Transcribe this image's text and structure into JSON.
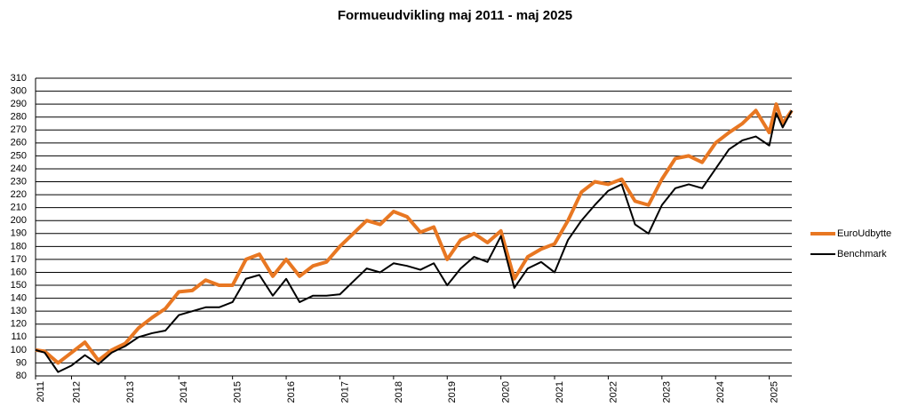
{
  "chart_data": {
    "type": "line",
    "title": "Formueudvikling maj 2011 - maj 2025",
    "x": [
      2011.33,
      2011.5,
      2011.75,
      2012.0,
      2012.25,
      2012.5,
      2012.75,
      2013.0,
      2013.25,
      2013.5,
      2013.75,
      2014.0,
      2014.25,
      2014.5,
      2014.75,
      2015.0,
      2015.25,
      2015.5,
      2015.75,
      2016.0,
      2016.25,
      2016.5,
      2016.75,
      2017.0,
      2017.25,
      2017.5,
      2017.75,
      2018.0,
      2018.25,
      2018.5,
      2018.75,
      2019.0,
      2019.25,
      2019.5,
      2019.75,
      2020.0,
      2020.25,
      2020.5,
      2020.75,
      2021.0,
      2021.25,
      2021.5,
      2021.75,
      2022.0,
      2022.25,
      2022.5,
      2022.75,
      2023.0,
      2023.25,
      2023.5,
      2023.75,
      2024.0,
      2024.25,
      2024.5,
      2024.75,
      2025.0,
      2025.13,
      2025.25,
      2025.42
    ],
    "series": [
      {
        "name": "EuroUdbytte",
        "color": "#e87722",
        "width": 4,
        "values": [
          100,
          99,
          90,
          98,
          106,
          92,
          100,
          105,
          117,
          125,
          132,
          145,
          146,
          154,
          150,
          150,
          170,
          174,
          157,
          170,
          157,
          165,
          168,
          180,
          190,
          200,
          197,
          207,
          203,
          191,
          195,
          170,
          185,
          190,
          183,
          192,
          155,
          172,
          178,
          182,
          200,
          222,
          230,
          228,
          232,
          215,
          212,
          232,
          248,
          250,
          245,
          260,
          268,
          275,
          285,
          268,
          290,
          275,
          285
        ]
      },
      {
        "name": "Benchmark",
        "color": "#000000",
        "width": 2,
        "values": [
          100,
          98,
          83,
          88,
          96,
          89,
          98,
          103,
          110,
          113,
          115,
          127,
          130,
          133,
          133,
          137,
          155,
          158,
          142,
          155,
          137,
          142,
          142,
          143,
          153,
          163,
          160,
          167,
          165,
          162,
          167,
          150,
          163,
          172,
          168,
          188,
          148,
          163,
          168,
          160,
          185,
          200,
          212,
          223,
          228,
          197,
          190,
          212,
          225,
          228,
          225,
          240,
          255,
          262,
          265,
          258,
          283,
          272,
          285
        ]
      }
    ],
    "xlim": [
      2011.33,
      2025.42
    ],
    "xticks": [
      {
        "value": 2011.33,
        "label": "2011"
      },
      2012,
      2013,
      2014,
      2015,
      2016,
      2017,
      2018,
      2019,
      2020,
      2021,
      2022,
      2023,
      2024,
      2025
    ],
    "ylim": [
      80,
      310
    ],
    "yticks": [
      80,
      90,
      100,
      110,
      120,
      130,
      140,
      150,
      160,
      170,
      180,
      190,
      200,
      210,
      220,
      230,
      240,
      250,
      260,
      270,
      280,
      290,
      300,
      310
    ],
    "grid": true,
    "legend": "right"
  }
}
